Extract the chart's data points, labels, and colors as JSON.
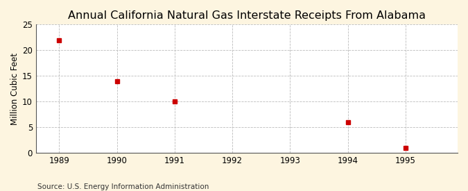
{
  "title": "Annual California Natural Gas Interstate Receipts From Alabama",
  "ylabel": "Million Cubic Feet",
  "source": "Source: U.S. Energy Information Administration",
  "x": [
    1989,
    1990,
    1991,
    1994,
    1995
  ],
  "y": [
    22,
    14,
    10,
    6,
    1
  ],
  "xlim": [
    1988.6,
    1995.9
  ],
  "ylim": [
    0,
    25
  ],
  "yticks": [
    0,
    5,
    10,
    15,
    20,
    25
  ],
  "xticks": [
    1989,
    1990,
    1991,
    1992,
    1993,
    1994,
    1995
  ],
  "marker_color": "#cc0000",
  "marker": "s",
  "marker_size": 4,
  "bg_color": "#fdf5e0",
  "plot_bg_color": "#ffffff",
  "grid_color": "#bbbbbb",
  "spine_color": "#555555",
  "title_fontsize": 11.5,
  "label_fontsize": 8.5,
  "tick_fontsize": 8.5,
  "source_fontsize": 7.5
}
